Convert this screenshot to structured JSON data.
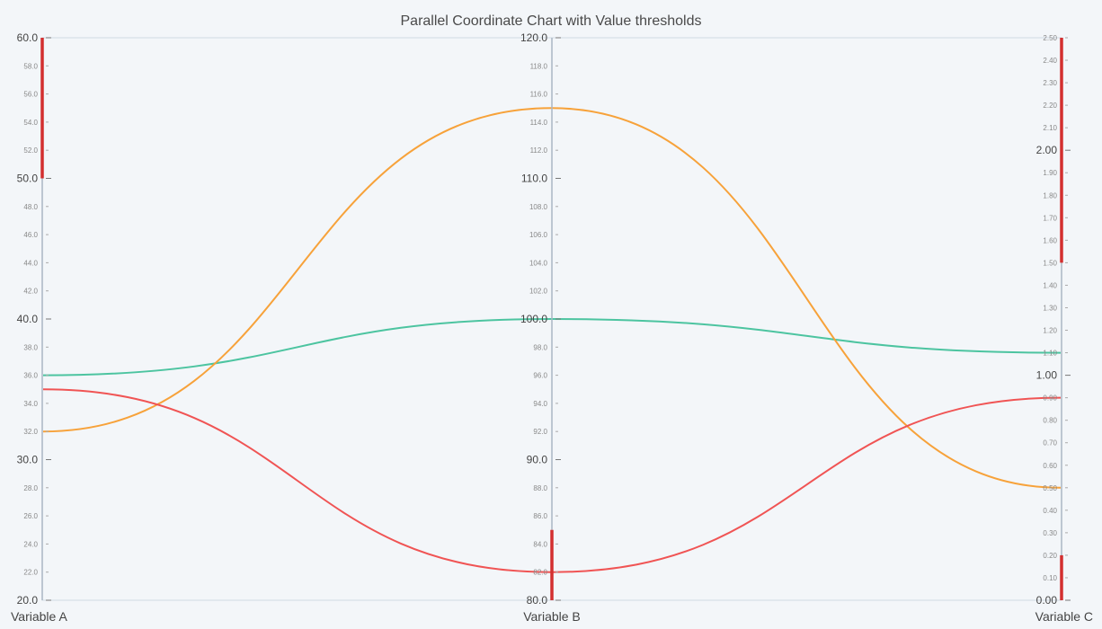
{
  "chart_data": {
    "type": "parallel-coordinates",
    "title": "Parallel Coordinate Chart with Value thresholds",
    "axes": [
      {
        "name": "Variable A",
        "min": 20,
        "max": 60,
        "minor_step": 2,
        "major_step": 10,
        "decimals": 1,
        "tick_labels": [
          "20.0",
          "22.0",
          "24.0",
          "26.0",
          "28.0",
          "30.0",
          "32.0",
          "34.0",
          "36.0",
          "38.0",
          "40.0",
          "42.0",
          "44.0",
          "46.0",
          "48.0",
          "50.0",
          "52.0",
          "54.0",
          "56.0",
          "58.0",
          "60.0"
        ],
        "thresholds": [
          [
            50,
            60
          ]
        ]
      },
      {
        "name": "Variable B",
        "min": 80,
        "max": 120,
        "minor_step": 2,
        "major_step": 10,
        "decimals": 1,
        "tick_labels": [
          "80.0",
          "82.0",
          "84.0",
          "86.0",
          "88.0",
          "90.0",
          "92.0",
          "94.0",
          "96.0",
          "98.0",
          "100.0",
          "102.0",
          "104.0",
          "106.0",
          "108.0",
          "110.0",
          "112.0",
          "114.0",
          "116.0",
          "118.0",
          "120.0"
        ],
        "thresholds": [
          [
            80,
            85
          ]
        ]
      },
      {
        "name": "Variable C",
        "min": 0,
        "max": 2.5,
        "minor_step": 0.1,
        "major_step": 1,
        "decimals": 2,
        "tick_labels": [
          "0.00",
          "0.10",
          "0.20",
          "0.30",
          "0.40",
          "0.50",
          "0.60",
          "0.70",
          "0.80",
          "0.90",
          "1.00",
          "1.10",
          "1.20",
          "1.30",
          "1.40",
          "1.50",
          "1.60",
          "1.70",
          "1.80",
          "1.90",
          "2.00",
          "2.10",
          "2.20",
          "2.30",
          "2.40",
          "2.50"
        ],
        "thresholds": [
          [
            0,
            0.2
          ],
          [
            1.5,
            2.5
          ]
        ]
      }
    ],
    "series": [
      {
        "values": [
          36,
          100,
          1.1
        ],
        "color": "#4cc4a0"
      },
      {
        "values": [
          32,
          115,
          0.5
        ],
        "color": "#f7a23a"
      },
      {
        "values": [
          35,
          82,
          0.9
        ],
        "color": "#f05454"
      }
    ],
    "threshold_color": "#d32f2f",
    "axis_color": "#aab6c4"
  }
}
